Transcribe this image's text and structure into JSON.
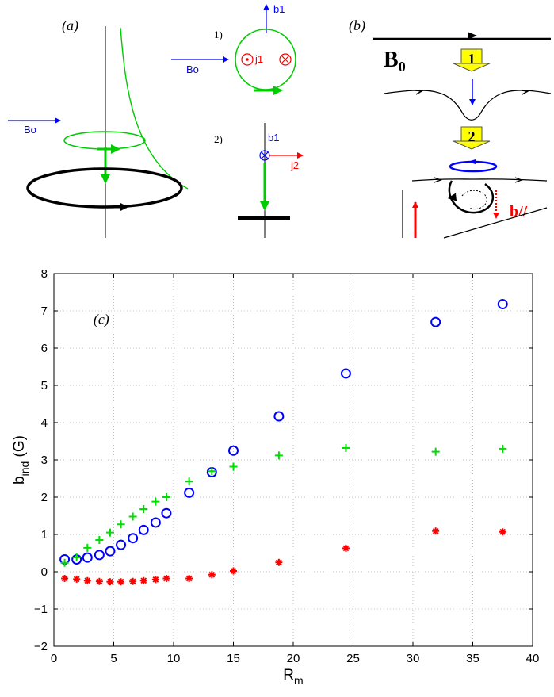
{
  "panel_a": {
    "label": "(a)",
    "bo_left": "Bo",
    "bo_right": "Bo",
    "case1": "1)",
    "case2": "2)",
    "b1_top": "b1",
    "b1_bottom": "b1",
    "j1": "j1",
    "j2": "j2",
    "colors": {
      "field": "#0000ff",
      "current": "#ff0000",
      "induced": "#00cc00",
      "flow": "#000000"
    }
  },
  "panel_b": {
    "label": "(b)",
    "b0": "B",
    "b0_sub": "0",
    "step1": "1",
    "step2": "2",
    "bpar": "b//",
    "colors": {
      "step_box": "#ffff00",
      "down_arrow": "#0000ff",
      "loop": "#0000ff",
      "vertical": "#ff0000"
    }
  },
  "chart_data": {
    "type": "scatter",
    "panel_label": "(c)",
    "xlabel": "R",
    "xlabel_sub": "m",
    "ylabel": "b",
    "ylabel_sub": "ind",
    "ylabel_unit": " (G)",
    "xlim": [
      0,
      40
    ],
    "ylim": [
      -2,
      8
    ],
    "xticks": [
      0,
      5,
      10,
      15,
      20,
      25,
      30,
      35,
      40
    ],
    "yticks": [
      -2,
      -1,
      0,
      1,
      2,
      3,
      4,
      5,
      6,
      7,
      8
    ],
    "grid": true,
    "series": [
      {
        "marker": "circle",
        "color": "#0000ff",
        "points": [
          [
            0.9,
            0.33
          ],
          [
            1.9,
            0.33
          ],
          [
            2.8,
            0.38
          ],
          [
            3.8,
            0.45
          ],
          [
            4.7,
            0.55
          ],
          [
            5.6,
            0.72
          ],
          [
            6.6,
            0.9
          ],
          [
            7.5,
            1.12
          ],
          [
            8.5,
            1.32
          ],
          [
            9.4,
            1.57
          ],
          [
            11.3,
            2.12
          ],
          [
            13.2,
            2.67
          ],
          [
            15.0,
            3.25
          ],
          [
            18.8,
            4.17
          ],
          [
            24.4,
            5.32
          ],
          [
            31.9,
            6.7
          ],
          [
            37.5,
            7.18
          ]
        ]
      },
      {
        "marker": "plus",
        "color": "#00dd00",
        "points": [
          [
            0.9,
            0.24
          ],
          [
            1.9,
            0.38
          ],
          [
            2.8,
            0.64
          ],
          [
            3.8,
            0.85
          ],
          [
            4.7,
            1.05
          ],
          [
            5.6,
            1.27
          ],
          [
            6.6,
            1.48
          ],
          [
            7.5,
            1.68
          ],
          [
            8.5,
            1.88
          ],
          [
            9.4,
            2.0
          ],
          [
            11.3,
            2.42
          ],
          [
            13.2,
            2.7
          ],
          [
            15.0,
            2.82
          ],
          [
            18.8,
            3.12
          ],
          [
            24.4,
            3.32
          ],
          [
            31.9,
            3.22
          ],
          [
            37.5,
            3.3
          ]
        ]
      },
      {
        "marker": "star",
        "color": "#ff0000",
        "points": [
          [
            0.9,
            -0.18
          ],
          [
            1.9,
            -0.2
          ],
          [
            2.8,
            -0.24
          ],
          [
            3.8,
            -0.26
          ],
          [
            4.7,
            -0.27
          ],
          [
            5.6,
            -0.27
          ],
          [
            6.6,
            -0.26
          ],
          [
            7.5,
            -0.24
          ],
          [
            8.5,
            -0.21
          ],
          [
            9.4,
            -0.18
          ],
          [
            11.3,
            -0.18
          ],
          [
            13.2,
            -0.08
          ],
          [
            15.0,
            0.02
          ],
          [
            18.8,
            0.25
          ],
          [
            24.4,
            0.63
          ],
          [
            31.9,
            1.09
          ],
          [
            37.5,
            1.07
          ]
        ]
      }
    ]
  }
}
